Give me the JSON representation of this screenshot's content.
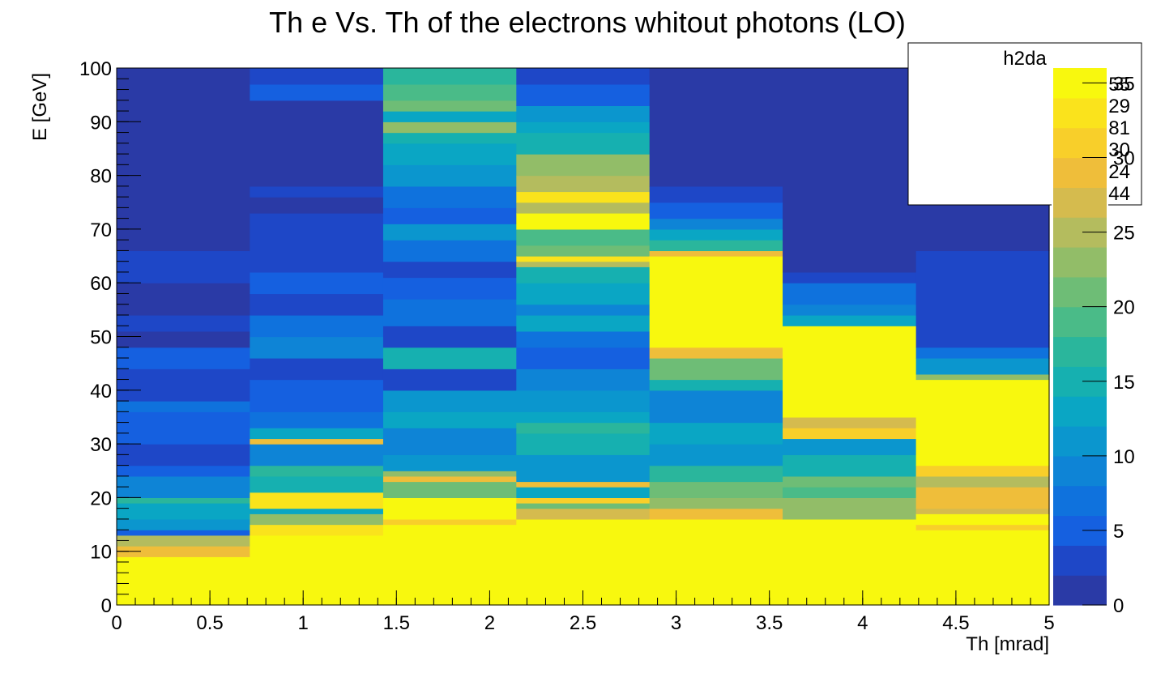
{
  "chart_data": {
    "type": "heatmap",
    "title": "Th e Vs. Th  of the electrons whitout photons (LO)",
    "xlabel": "Th [mrad]",
    "ylabel": "E [GeV]",
    "xlim": [
      0,
      5
    ],
    "ylim": [
      0,
      100
    ],
    "x_ticks": [
      "0",
      "0.5",
      "1",
      "1.5",
      "2",
      "2.5",
      "3",
      "3.5",
      "4",
      "4.5",
      "5"
    ],
    "y_ticks": [
      "0",
      "10",
      "20",
      "30",
      "40",
      "50",
      "60",
      "70",
      "80",
      "90",
      "100"
    ],
    "color_scale": {
      "min": 0,
      "max": 36,
      "ticks": [
        "0",
        "5",
        "10",
        "15",
        "20",
        "25",
        "30",
        "35"
      ],
      "palette": [
        "#2a3aa6",
        "#1e47c7",
        "#1560e0",
        "#0f72dd",
        "#0e84d6",
        "#0b96ce",
        "#0aa6c4",
        "#16b0b0",
        "#2ab69c",
        "#4abb88",
        "#6ebd76",
        "#92bd68",
        "#b4bc5e",
        "#d5bb4e",
        "#efbe3a",
        "#f8cf2a",
        "#fae31c",
        "#f8f80e"
      ]
    },
    "stats_box": {
      "title": "h2da",
      "lines": [
        "55",
        "29",
        "81",
        "30",
        "24",
        "44"
      ]
    },
    "x_bins": [
      0,
      0.714,
      1.429,
      2.143,
      2.857,
      3.571,
      4.286,
      5
    ],
    "columns": [
      [
        [
          0,
          9,
          36
        ],
        [
          9,
          11,
          28
        ],
        [
          11,
          13,
          24
        ],
        [
          13,
          14,
          5
        ],
        [
          14,
          16,
          10
        ],
        [
          16,
          19,
          12
        ],
        [
          19,
          20,
          17
        ],
        [
          20,
          24,
          9
        ],
        [
          24,
          26,
          5
        ],
        [
          26,
          30,
          2
        ],
        [
          30,
          36,
          4
        ],
        [
          36,
          38,
          6
        ],
        [
          38,
          44,
          2
        ],
        [
          44,
          48,
          4
        ],
        [
          48,
          51,
          1
        ],
        [
          51,
          54,
          3
        ],
        [
          54,
          60,
          1
        ],
        [
          60,
          66,
          2
        ],
        [
          66,
          92,
          1
        ],
        [
          92,
          100,
          1
        ]
      ],
      [
        [
          0,
          13,
          36
        ],
        [
          13,
          15,
          33
        ],
        [
          15,
          17,
          22
        ],
        [
          17,
          18,
          12
        ],
        [
          18,
          21,
          33
        ],
        [
          21,
          24,
          14
        ],
        [
          24,
          26,
          17
        ],
        [
          26,
          30,
          9
        ],
        [
          30,
          31,
          28
        ],
        [
          31,
          33,
          12
        ],
        [
          33,
          36,
          7
        ],
        [
          36,
          42,
          5
        ],
        [
          42,
          46,
          3
        ],
        [
          46,
          50,
          8
        ],
        [
          50,
          54,
          6
        ],
        [
          54,
          58,
          3
        ],
        [
          58,
          62,
          4
        ],
        [
          62,
          68,
          3
        ],
        [
          68,
          73,
          2
        ],
        [
          73,
          76,
          1
        ],
        [
          76,
          78,
          2
        ],
        [
          78,
          94,
          1
        ],
        [
          94,
          97,
          4
        ],
        [
          97,
          100,
          3
        ]
      ],
      [
        [
          0,
          15,
          36
        ],
        [
          15,
          16,
          30
        ],
        [
          16,
          20,
          36
        ],
        [
          20,
          23,
          20
        ],
        [
          23,
          24,
          28
        ],
        [
          24,
          25,
          23
        ],
        [
          25,
          28,
          10
        ],
        [
          28,
          33,
          9
        ],
        [
          33,
          36,
          12
        ],
        [
          36,
          40,
          10
        ],
        [
          40,
          44,
          3
        ],
        [
          44,
          48,
          14
        ],
        [
          48,
          52,
          3
        ],
        [
          52,
          57,
          6
        ],
        [
          57,
          61,
          5
        ],
        [
          61,
          64,
          3
        ],
        [
          64,
          68,
          6
        ],
        [
          68,
          71,
          10
        ],
        [
          71,
          74,
          4
        ],
        [
          74,
          78,
          6
        ],
        [
          78,
          82,
          11
        ],
        [
          82,
          86,
          13
        ],
        [
          86,
          88,
          15
        ],
        [
          88,
          90,
          22
        ],
        [
          90,
          92,
          12
        ],
        [
          92,
          94,
          21
        ],
        [
          94,
          97,
          18
        ],
        [
          97,
          100,
          16
        ]
      ],
      [
        [
          0,
          16,
          36
        ],
        [
          16,
          18,
          27
        ],
        [
          18,
          19,
          20
        ],
        [
          19,
          20,
          30
        ],
        [
          20,
          22,
          12
        ],
        [
          22,
          23,
          28
        ],
        [
          23,
          28,
          10
        ],
        [
          28,
          32,
          14
        ],
        [
          32,
          34,
          16
        ],
        [
          34,
          36,
          12
        ],
        [
          36,
          40,
          10
        ],
        [
          40,
          44,
          9
        ],
        [
          44,
          48,
          4
        ],
        [
          48,
          51,
          6
        ],
        [
          51,
          54,
          12
        ],
        [
          54,
          56,
          8
        ],
        [
          56,
          60,
          12
        ],
        [
          60,
          63,
          15
        ],
        [
          63,
          64,
          24
        ],
        [
          64,
          65,
          33
        ],
        [
          65,
          67,
          20
        ],
        [
          67,
          70,
          18
        ],
        [
          70,
          73,
          36
        ],
        [
          73,
          75,
          25
        ],
        [
          75,
          77,
          32
        ],
        [
          77,
          80,
          25
        ],
        [
          80,
          84,
          22
        ],
        [
          84,
          88,
          15
        ],
        [
          88,
          90,
          12
        ],
        [
          90,
          93,
          10
        ],
        [
          93,
          97,
          5
        ],
        [
          97,
          100,
          3
        ]
      ],
      [
        [
          0,
          16,
          36
        ],
        [
          16,
          18,
          29
        ],
        [
          18,
          20,
          22
        ],
        [
          20,
          23,
          21
        ],
        [
          23,
          26,
          17
        ],
        [
          26,
          30,
          10
        ],
        [
          30,
          34,
          12
        ],
        [
          34,
          40,
          8
        ],
        [
          40,
          42,
          14
        ],
        [
          42,
          46,
          20
        ],
        [
          46,
          48,
          29
        ],
        [
          48,
          65,
          36
        ],
        [
          65,
          66,
          28
        ],
        [
          66,
          68,
          17
        ],
        [
          68,
          70,
          13
        ],
        [
          70,
          72,
          9
        ],
        [
          72,
          75,
          5
        ],
        [
          75,
          78,
          3
        ],
        [
          78,
          100,
          1
        ]
      ],
      [
        [
          0,
          16,
          36
        ],
        [
          16,
          20,
          23
        ],
        [
          20,
          22,
          18
        ],
        [
          22,
          24,
          20
        ],
        [
          24,
          28,
          14
        ],
        [
          28,
          31,
          11
        ],
        [
          31,
          33,
          30
        ],
        [
          33,
          35,
          26
        ],
        [
          35,
          52,
          36
        ],
        [
          52,
          54,
          12
        ],
        [
          54,
          56,
          9
        ],
        [
          56,
          60,
          6
        ],
        [
          60,
          62,
          3
        ],
        [
          62,
          100,
          1
        ]
      ],
      [
        [
          0,
          14,
          36
        ],
        [
          14,
          15,
          30
        ],
        [
          15,
          17,
          36
        ],
        [
          17,
          18,
          26
        ],
        [
          18,
          22,
          28
        ],
        [
          22,
          24,
          24
        ],
        [
          24,
          26,
          30
        ],
        [
          26,
          42,
          36
        ],
        [
          42,
          43,
          22
        ],
        [
          43,
          46,
          11
        ],
        [
          46,
          48,
          6
        ],
        [
          48,
          52,
          3
        ],
        [
          52,
          56,
          2
        ],
        [
          56,
          60,
          3
        ],
        [
          60,
          66,
          2
        ],
        [
          66,
          100,
          1
        ]
      ]
    ]
  }
}
